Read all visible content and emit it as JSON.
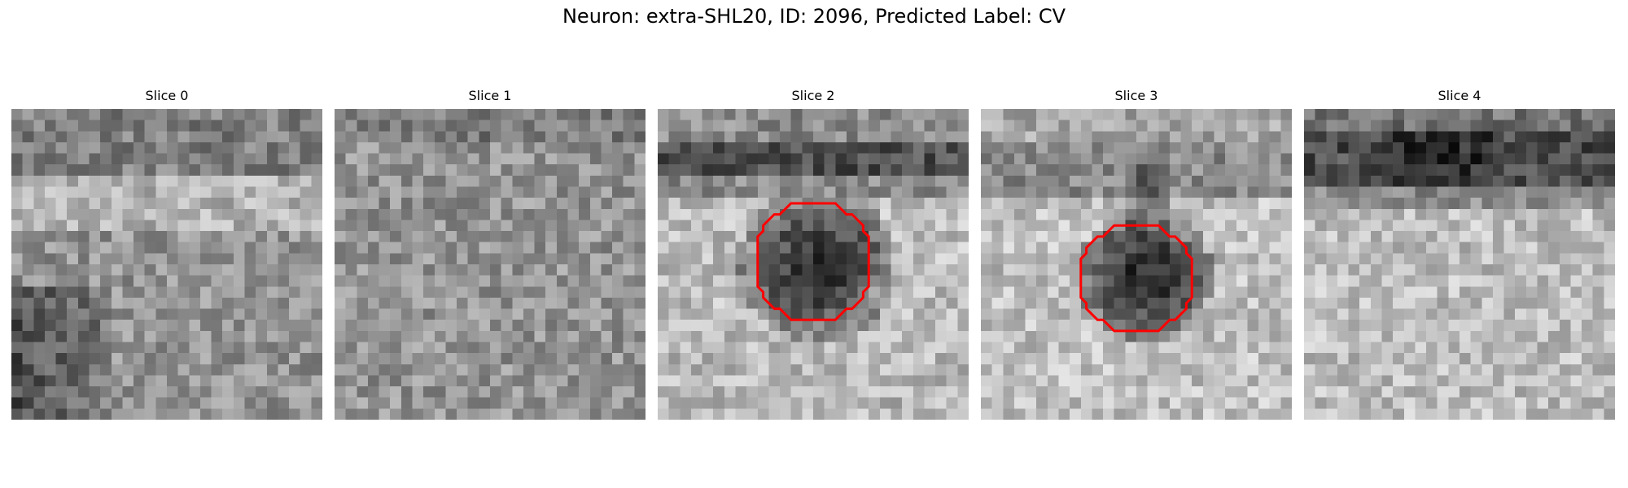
{
  "figure": {
    "title": "Neuron: extra-SHL20, ID: 2096, Predicted Label: CV"
  },
  "slices": [
    {
      "title": "Slice 0",
      "has_contour": false
    },
    {
      "title": "Slice 1",
      "has_contour": false
    },
    {
      "title": "Slice 2",
      "has_contour": true
    },
    {
      "title": "Slice 3",
      "has_contour": true
    },
    {
      "title": "Slice 4",
      "has_contour": false
    }
  ],
  "colors": {
    "contour": "#ff0000",
    "background": "#ffffff"
  }
}
